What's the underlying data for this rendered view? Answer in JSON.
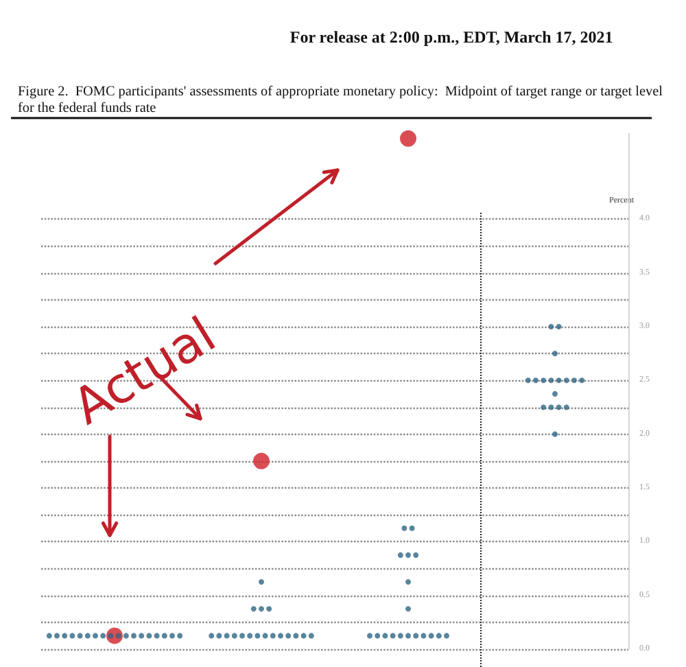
{
  "chart_data": {
    "type": "scatter",
    "subtitle": "For release at 2:00 p.m., EDT, March 17, 2021",
    "title": "Figure 2.  FOMC participants' assessments of appropriate monetary policy:  Midpoint of target range or target level for the federal funds rate",
    "ylabel": "Percent",
    "annotations": [
      "Actual"
    ],
    "categories": [
      null,
      null,
      null,
      null
    ],
    "ylim": [
      0,
      4.8
    ],
    "yticks": [
      {
        "value": 0,
        "label": "0.0"
      },
      {
        "value": 0.25,
        "label": null
      },
      {
        "value": 0.5,
        "label": "0.5"
      },
      {
        "value": 0.75,
        "label": null
      },
      {
        "value": 1,
        "label": "1.0"
      },
      {
        "value": 1.25,
        "label": null
      },
      {
        "value": 1.5,
        "label": "1.5"
      },
      {
        "value": 1.75,
        "label": null
      },
      {
        "value": 2,
        "label": "2.0"
      },
      {
        "value": 2.25,
        "label": null
      },
      {
        "value": 2.5,
        "label": "2.5"
      },
      {
        "value": 2.75,
        "label": null
      },
      {
        "value": 3,
        "label": "3.0"
      },
      {
        "value": 3.25,
        "label": null
      },
      {
        "value": 3.5,
        "label": "3.5"
      },
      {
        "value": 3.75,
        "label": null
      },
      {
        "value": 4,
        "label": "4.0"
      }
    ],
    "tick_labels": "y",
    "grid": "y",
    "marker": "circle",
    "series": [
      {
        "color": "#2e6784",
        "values": [
          0.125,
          0.125,
          0.125,
          2
        ]
      },
      {
        "color": "#2e6784",
        "values": [
          0.125,
          0.125,
          0.125,
          2.25
        ]
      },
      {
        "color": "#2e6784",
        "values": [
          0.125,
          0.125,
          0.125,
          2.25
        ]
      },
      {
        "color": "#2e6784",
        "values": [
          0.125,
          0.125,
          0.125,
          2.25
        ]
      },
      {
        "color": "#2e6784",
        "values": [
          0.125,
          0.125,
          0.125,
          2.25
        ]
      },
      {
        "color": "#2e6784",
        "values": [
          0.125,
          0.125,
          0.125,
          2.375
        ]
      },
      {
        "color": "#2e6784",
        "values": [
          0.125,
          0.125,
          0.125,
          2.5
        ]
      },
      {
        "color": "#2e6784",
        "values": [
          0.125,
          0.125,
          0.125,
          2.5
        ]
      },
      {
        "color": "#2e6784",
        "values": [
          0.125,
          0.125,
          0.125,
          2.5
        ]
      },
      {
        "color": "#2e6784",
        "values": [
          0.125,
          0.125,
          0.125,
          2.5
        ]
      },
      {
        "color": "#2e6784",
        "values": [
          0.125,
          0.125,
          0.125,
          2.5
        ]
      },
      {
        "color": "#2e6784",
        "values": [
          0.125,
          0.125,
          0.375,
          2.5
        ]
      },
      {
        "color": "#2e6784",
        "values": [
          0.125,
          0.125,
          0.625,
          2.5
        ]
      },
      {
        "color": "#2e6784",
        "values": [
          0.125,
          0.125,
          0.875,
          2.5
        ]
      },
      {
        "color": "#2e6784",
        "values": [
          0.125,
          0.375,
          0.875,
          2.75
        ]
      },
      {
        "color": "#2e6784",
        "values": [
          0.125,
          0.375,
          0.875,
          3
        ]
      },
      {
        "color": "#2e6784",
        "values": [
          0.125,
          0.375,
          1.125,
          3
        ]
      },
      {
        "color": "#2e6784",
        "values": [
          0.125,
          0.625,
          1.125,
          null
        ]
      },
      {
        "color": "#d0212a",
        "values": [
          0.125,
          1.75,
          4.75,
          null
        ]
      }
    ]
  }
}
